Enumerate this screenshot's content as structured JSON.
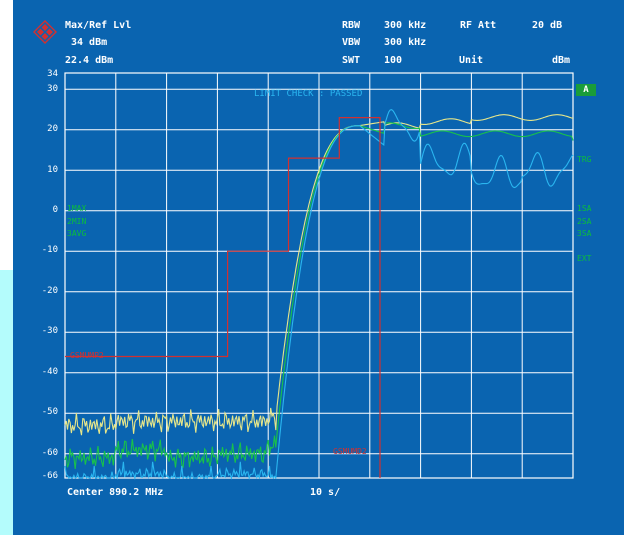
{
  "header": {
    "ref_title": "Max/Ref Lvl",
    "ref_value": "34 dBm",
    "ref_level2": "22.4 dBm",
    "rbw_label": "RBW",
    "rbw_value": "300 kHz",
    "vbw_label": "VBW",
    "vbw_value": "300 kHz",
    "swt_label": "SWT",
    "swt_value": "100",
    "rf_att_label": "RF Att",
    "rf_att_value": "20 dB",
    "unit_label": "Unit",
    "unit_value": "dBm"
  },
  "limit_check": "LIMIT CHECK  : PASSED",
  "trace_labels": [
    "1MAX",
    "2MIN",
    "3AVG"
  ],
  "right_labels": {
    "a_box": "A",
    "trg": "TRG",
    "sa1": "1SA",
    "sa2": "2SA",
    "sa3": "3SA",
    "ext": "EXT"
  },
  "limit_labels": {
    "upper": "GSMUMP2",
    "lower": "GSMUMD2"
  },
  "footer": {
    "center": "Center 890.2 MHz",
    "span": "10  s/"
  },
  "colors": {
    "background": "#0a64b0",
    "grid": "#ffffff",
    "max": "#e6e68a",
    "min": "#18c24a",
    "avg": "#2ab6f0",
    "limit": "#d23030"
  },
  "chart_data": {
    "type": "line",
    "xlabel": "",
    "ylabel": "",
    "ylim": [
      -66,
      34
    ],
    "y_ticks": [
      34,
      30,
      20,
      10,
      0,
      -10,
      -20,
      -30,
      -40,
      -50,
      -60,
      -66
    ],
    "x": [
      0,
      1,
      2,
      3,
      4,
      5,
      6,
      7,
      8,
      9,
      10
    ],
    "series": [
      {
        "name": "1MAX",
        "values": [
          -53,
          -52,
          -52,
          -52,
          -51,
          0,
          21,
          22,
          23,
          23,
          23
        ]
      },
      {
        "name": "2MIN",
        "values": [
          -61,
          -59,
          -61,
          -60,
          -58,
          0,
          21,
          19,
          19,
          19,
          18
        ]
      },
      {
        "name": "3AVG",
        "values": [
          -66,
          -65,
          -66,
          -65,
          -66,
          0,
          21,
          12,
          9,
          10,
          10
        ]
      }
    ],
    "limit_line": {
      "x": [
        0,
        3.2,
        3.2,
        4.4,
        4.4,
        5.4,
        5.4,
        6.2,
        6.2
      ],
      "y": [
        -36,
        -36,
        -10,
        -10,
        13,
        13,
        23,
        23,
        -66
      ]
    }
  }
}
